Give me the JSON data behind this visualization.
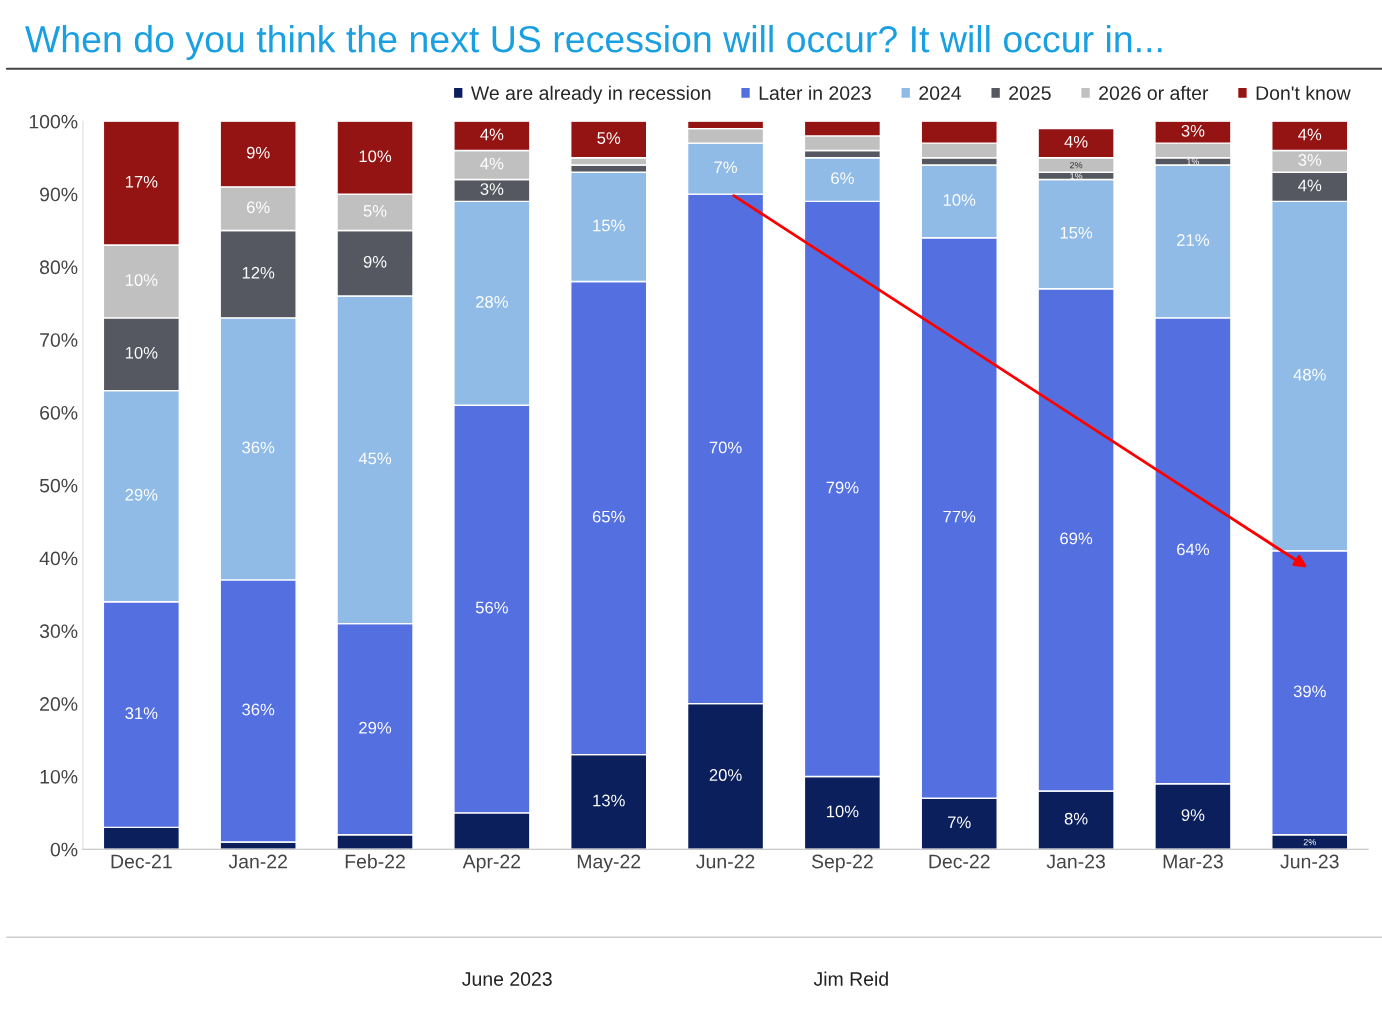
{
  "chart_data": {
    "type": "bar",
    "stacked": true,
    "title": "When do you think the next US recession will occur? It will occur in...",
    "categories": [
      "Dec-21",
      "Jan-22",
      "Feb-22",
      "Apr-22",
      "May-22",
      "Jun-22",
      "Sep-22",
      "Dec-22",
      "Jan-23",
      "Mar-23",
      "Jun-23"
    ],
    "series": [
      {
        "name": "We are already in recession",
        "color": "#0a1f5c",
        "values": [
          3,
          1,
          2,
          5,
          13,
          20,
          10,
          7,
          8,
          9,
          2
        ],
        "value_labels": [
          null,
          null,
          null,
          null,
          "13%",
          "20%",
          "10%",
          "7%",
          "8%",
          "9%",
          "2%"
        ]
      },
      {
        "name": "Later in 2023",
        "color": "#5470e0",
        "values": [
          31,
          36,
          29,
          56,
          65,
          70,
          79,
          77,
          69,
          64,
          39
        ],
        "value_labels": [
          "31%",
          "36%",
          "29%",
          "56%",
          "65%",
          "70%",
          "79%",
          "77%",
          "69%",
          "64%",
          "39%"
        ]
      },
      {
        "name": "2024",
        "color": "#8fbbe6",
        "values": [
          29,
          36,
          45,
          28,
          15,
          7,
          6,
          10,
          15,
          21,
          48
        ],
        "value_labels": [
          "29%",
          "36%",
          "45%",
          "28%",
          "15%",
          "7%",
          "6%",
          "10%",
          "15%",
          "21%",
          "48%"
        ]
      },
      {
        "name": "2025",
        "color": "#555860",
        "values": [
          10,
          12,
          9,
          3,
          1,
          0,
          1,
          1,
          1,
          1,
          4
        ],
        "value_labels": [
          "10%",
          "12%",
          "9%",
          "3%",
          null,
          null,
          null,
          null,
          "1%",
          "1%",
          "4%"
        ]
      },
      {
        "name": "2026 or after",
        "color": "#c0c0c0",
        "values": [
          10,
          6,
          5,
          4,
          1,
          2,
          2,
          2,
          2,
          2,
          3
        ],
        "value_labels": [
          "10%",
          "6%",
          "5%",
          "4%",
          null,
          null,
          null,
          null,
          "2%",
          null,
          "3%"
        ]
      },
      {
        "name": "Don't know",
        "color": "#941313",
        "values": [
          17,
          9,
          10,
          4,
          5,
          1,
          2,
          3,
          4,
          3,
          4
        ],
        "value_labels": [
          "17%",
          "9%",
          "10%",
          "4%",
          "5%",
          null,
          null,
          null,
          "4%",
          "3%",
          "4%"
        ]
      }
    ],
    "ylim": [
      0,
      100
    ],
    "yticks": [
      {
        "value": 0,
        "label": "0%"
      },
      {
        "value": 10,
        "label": "10%"
      },
      {
        "value": 20,
        "label": "20%"
      },
      {
        "value": 30,
        "label": "30%"
      },
      {
        "value": 40,
        "label": "40%"
      },
      {
        "value": 50,
        "label": "50%"
      },
      {
        "value": 60,
        "label": "60%"
      },
      {
        "value": 70,
        "label": "70%"
      },
      {
        "value": 80,
        "label": "80%"
      },
      {
        "value": 90,
        "label": "90%"
      },
      {
        "value": 100,
        "label": "100%"
      }
    ],
    "grid": false,
    "legend": "top right",
    "annotations": [
      "June 2023",
      "Jim Reid"
    ]
  }
}
